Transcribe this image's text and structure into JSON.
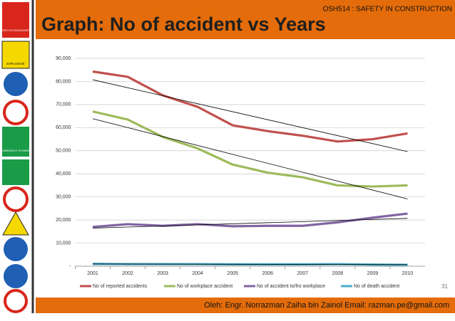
{
  "header": {
    "course": "OSH514 : SAFETY IN CONSTRUCTION",
    "page_number": "31",
    "footer": "Oleh: Engr. Norrazman Zaiha bin Zainol  Email: razman.pe@gmail.com"
  },
  "sidebar": [
    "FIRE EXTINGUISHER",
    "EXPLOSIVE",
    "EMERGENCY SHOWER"
  ],
  "chart_data": {
    "type": "line",
    "title": "Graph: No of accident vs Years",
    "categories": [
      "2001",
      "2002",
      "2003",
      "2004",
      "2005",
      "2006",
      "2007",
      "2008",
      "2009",
      "2010"
    ],
    "series": [
      {
        "name": "No of reported accidents",
        "color": "#c0504d",
        "values": [
          84300,
          82000,
          74000,
          69000,
          61000,
          58500,
          56500,
          54000,
          55000,
          57500
        ]
      },
      {
        "name": "No of workplace accident",
        "color": "#9bbb59",
        "values": [
          67000,
          63500,
          56000,
          51000,
          44000,
          40500,
          38500,
          35000,
          34500,
          35000
        ]
      },
      {
        "name": "No of accident to/fro workplace",
        "color": "#8064a2",
        "values": [
          17000,
          18200,
          17500,
          18200,
          17300,
          17500,
          17500,
          19000,
          21000,
          22800
        ]
      },
      {
        "name": "No of death accident",
        "color": "#4bacc6",
        "values": [
          1000,
          900,
          900,
          900,
          800,
          800,
          800,
          900,
          700,
          600
        ]
      }
    ],
    "ylim": [
      0,
      90000
    ],
    "yticks": [
      {
        "value": 0,
        "label": "-"
      },
      {
        "value": 10000,
        "label": "10,000"
      },
      {
        "value": 20000,
        "label": "20,000"
      },
      {
        "value": 30000,
        "label": "30,000"
      },
      {
        "value": 40000,
        "label": "40,000"
      },
      {
        "value": 50000,
        "label": "50,000"
      },
      {
        "value": 60000,
        "label": "60,000"
      },
      {
        "value": 70000,
        "label": "70,000"
      },
      {
        "value": 80000,
        "label": "80,000"
      },
      {
        "value": 90000,
        "label": "90,000"
      }
    ],
    "grid": true,
    "trendline": true,
    "legend": "bottom"
  }
}
